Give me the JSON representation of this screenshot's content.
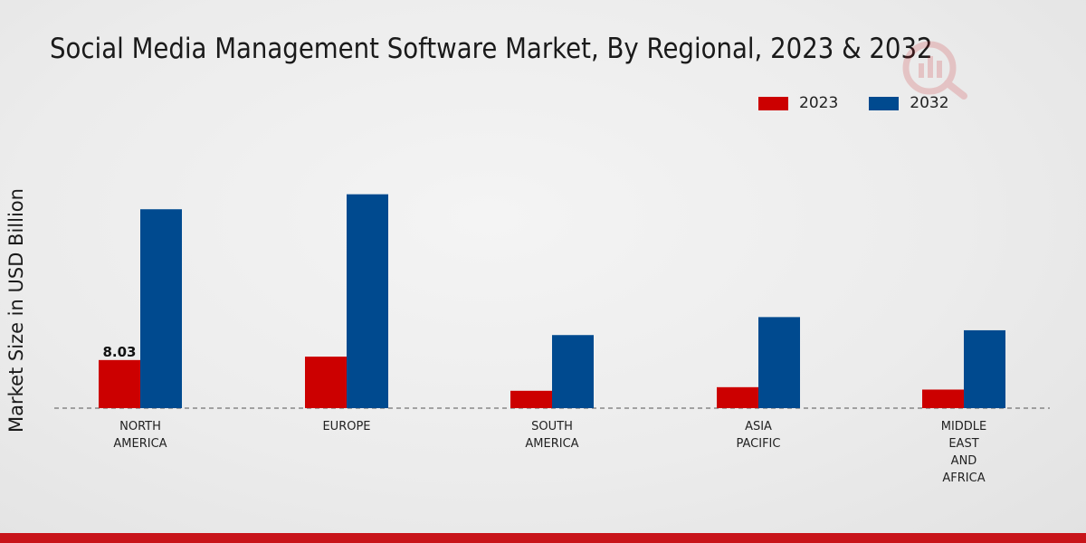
{
  "chart_data": {
    "type": "bar",
    "title": "Social Media Management Software Market, By Regional, 2023 & 2032",
    "xlabel": "",
    "ylabel": "Market Size in USD Billion",
    "categories": [
      "NORTH\nAMERICA",
      "EUROPE",
      "SOUTH\nAMERICA",
      "ASIA\nPACIFIC",
      "MIDDLE\nEAST\nAND\nAFRICA"
    ],
    "series": [
      {
        "name": "2023",
        "color": "#cc0000",
        "values": [
          8.03,
          8.6,
          2.9,
          3.5,
          3.1
        ]
      },
      {
        "name": "2032",
        "color": "#004a8f",
        "values": [
          33.2,
          35.7,
          12.2,
          15.2,
          13.0
        ]
      }
    ],
    "data_labels": [
      {
        "series": 0,
        "index": 0,
        "text": "8.03"
      }
    ],
    "ylim": [
      0,
      50
    ],
    "legend_position": "top-right",
    "grid": false
  }
}
